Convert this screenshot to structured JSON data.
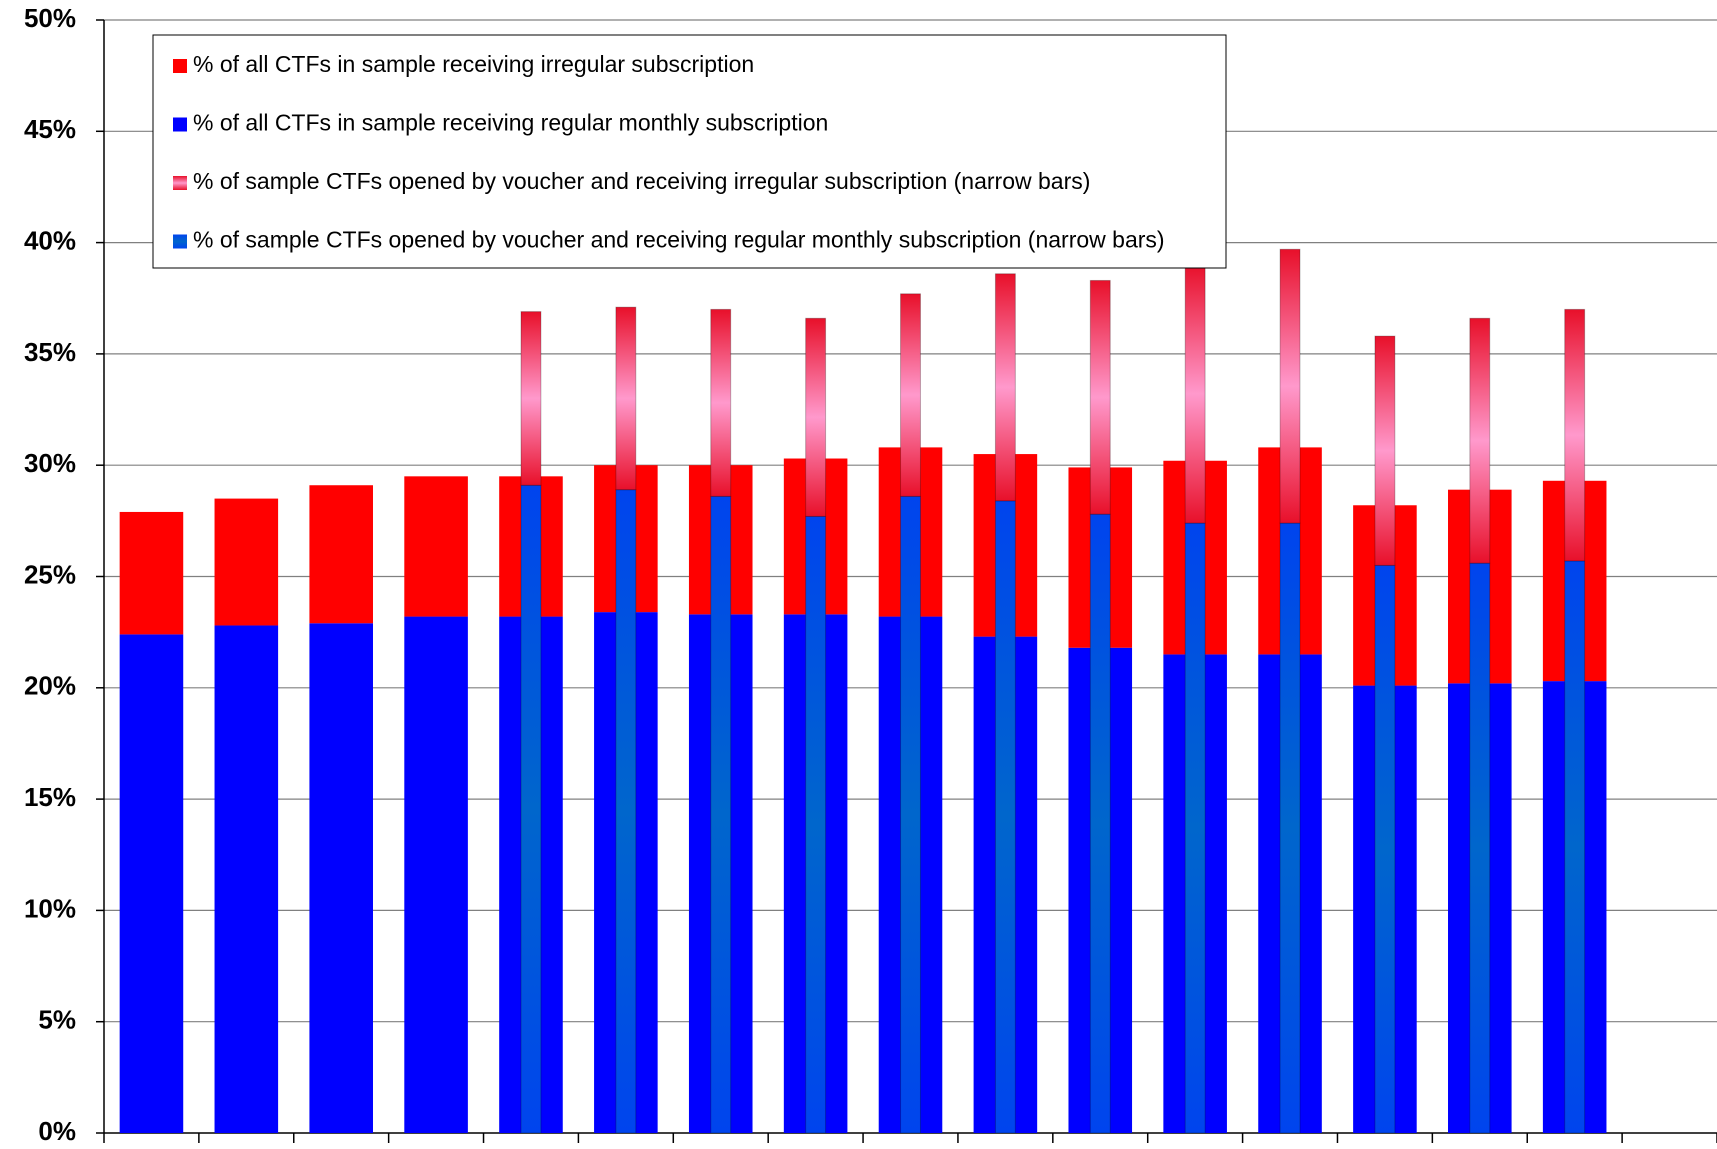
{
  "chart_data": {
    "type": "bar",
    "categories": [
      null,
      null,
      null,
      null,
      null,
      null,
      null,
      null,
      null,
      null,
      null,
      null,
      null,
      null,
      null,
      null,
      null
    ],
    "series": [
      {
        "name": "% of all CTFs in sample receiving regular monthly subscription",
        "color": "#0000ff",
        "stack": "wide",
        "values": [
          22.4,
          22.8,
          22.9,
          23.2,
          23.2,
          23.4,
          23.3,
          23.3,
          23.2,
          22.3,
          21.8,
          21.5,
          21.5,
          20.1,
          20.2,
          20.3,
          null
        ]
      },
      {
        "name": "% of all CTFs in sample receiving irregular subscription",
        "color": "#ff0000",
        "stack": "wide",
        "values": [
          5.5,
          5.7,
          6.2,
          6.3,
          6.3,
          6.6,
          6.7,
          7.0,
          7.6,
          8.2,
          8.1,
          8.7,
          9.3,
          8.1,
          8.7,
          9.0,
          null
        ]
      },
      {
        "name": "% of sample CTFs opened by voucher and receiving regular monthly subscription (narrow bars)",
        "color": "#0066cc",
        "stack": "narrow",
        "values": [
          null,
          null,
          null,
          null,
          29.1,
          28.9,
          28.6,
          27.7,
          28.6,
          28.4,
          27.8,
          27.4,
          27.4,
          25.5,
          25.6,
          25.7,
          null
        ]
      },
      {
        "name": "% of sample CTFs opened by voucher and receiving irregular subscription (narrow bars)",
        "color": "#ff99cc",
        "stack": "narrow",
        "values": [
          null,
          null,
          null,
          null,
          7.8,
          8.2,
          8.4,
          8.9,
          9.1,
          10.2,
          10.5,
          11.6,
          12.3,
          10.3,
          11.0,
          11.3,
          null
        ]
      }
    ],
    "legend_order": [
      1,
      0,
      3,
      2
    ],
    "ylim": [
      0,
      50
    ],
    "yticks": [
      {
        "value": 0,
        "label": "0%"
      },
      {
        "value": 5,
        "label": "5%"
      },
      {
        "value": 10,
        "label": "10%"
      },
      {
        "value": 15,
        "label": "15%"
      },
      {
        "value": 20,
        "label": "20%"
      },
      {
        "value": 25,
        "label": "25%"
      },
      {
        "value": 30,
        "label": "30%"
      },
      {
        "value": 35,
        "label": "35%"
      },
      {
        "value": 40,
        "label": "40%"
      },
      {
        "value": 45,
        "label": "45%"
      },
      {
        "value": 50,
        "label": "50%"
      }
    ],
    "grid": true
  }
}
